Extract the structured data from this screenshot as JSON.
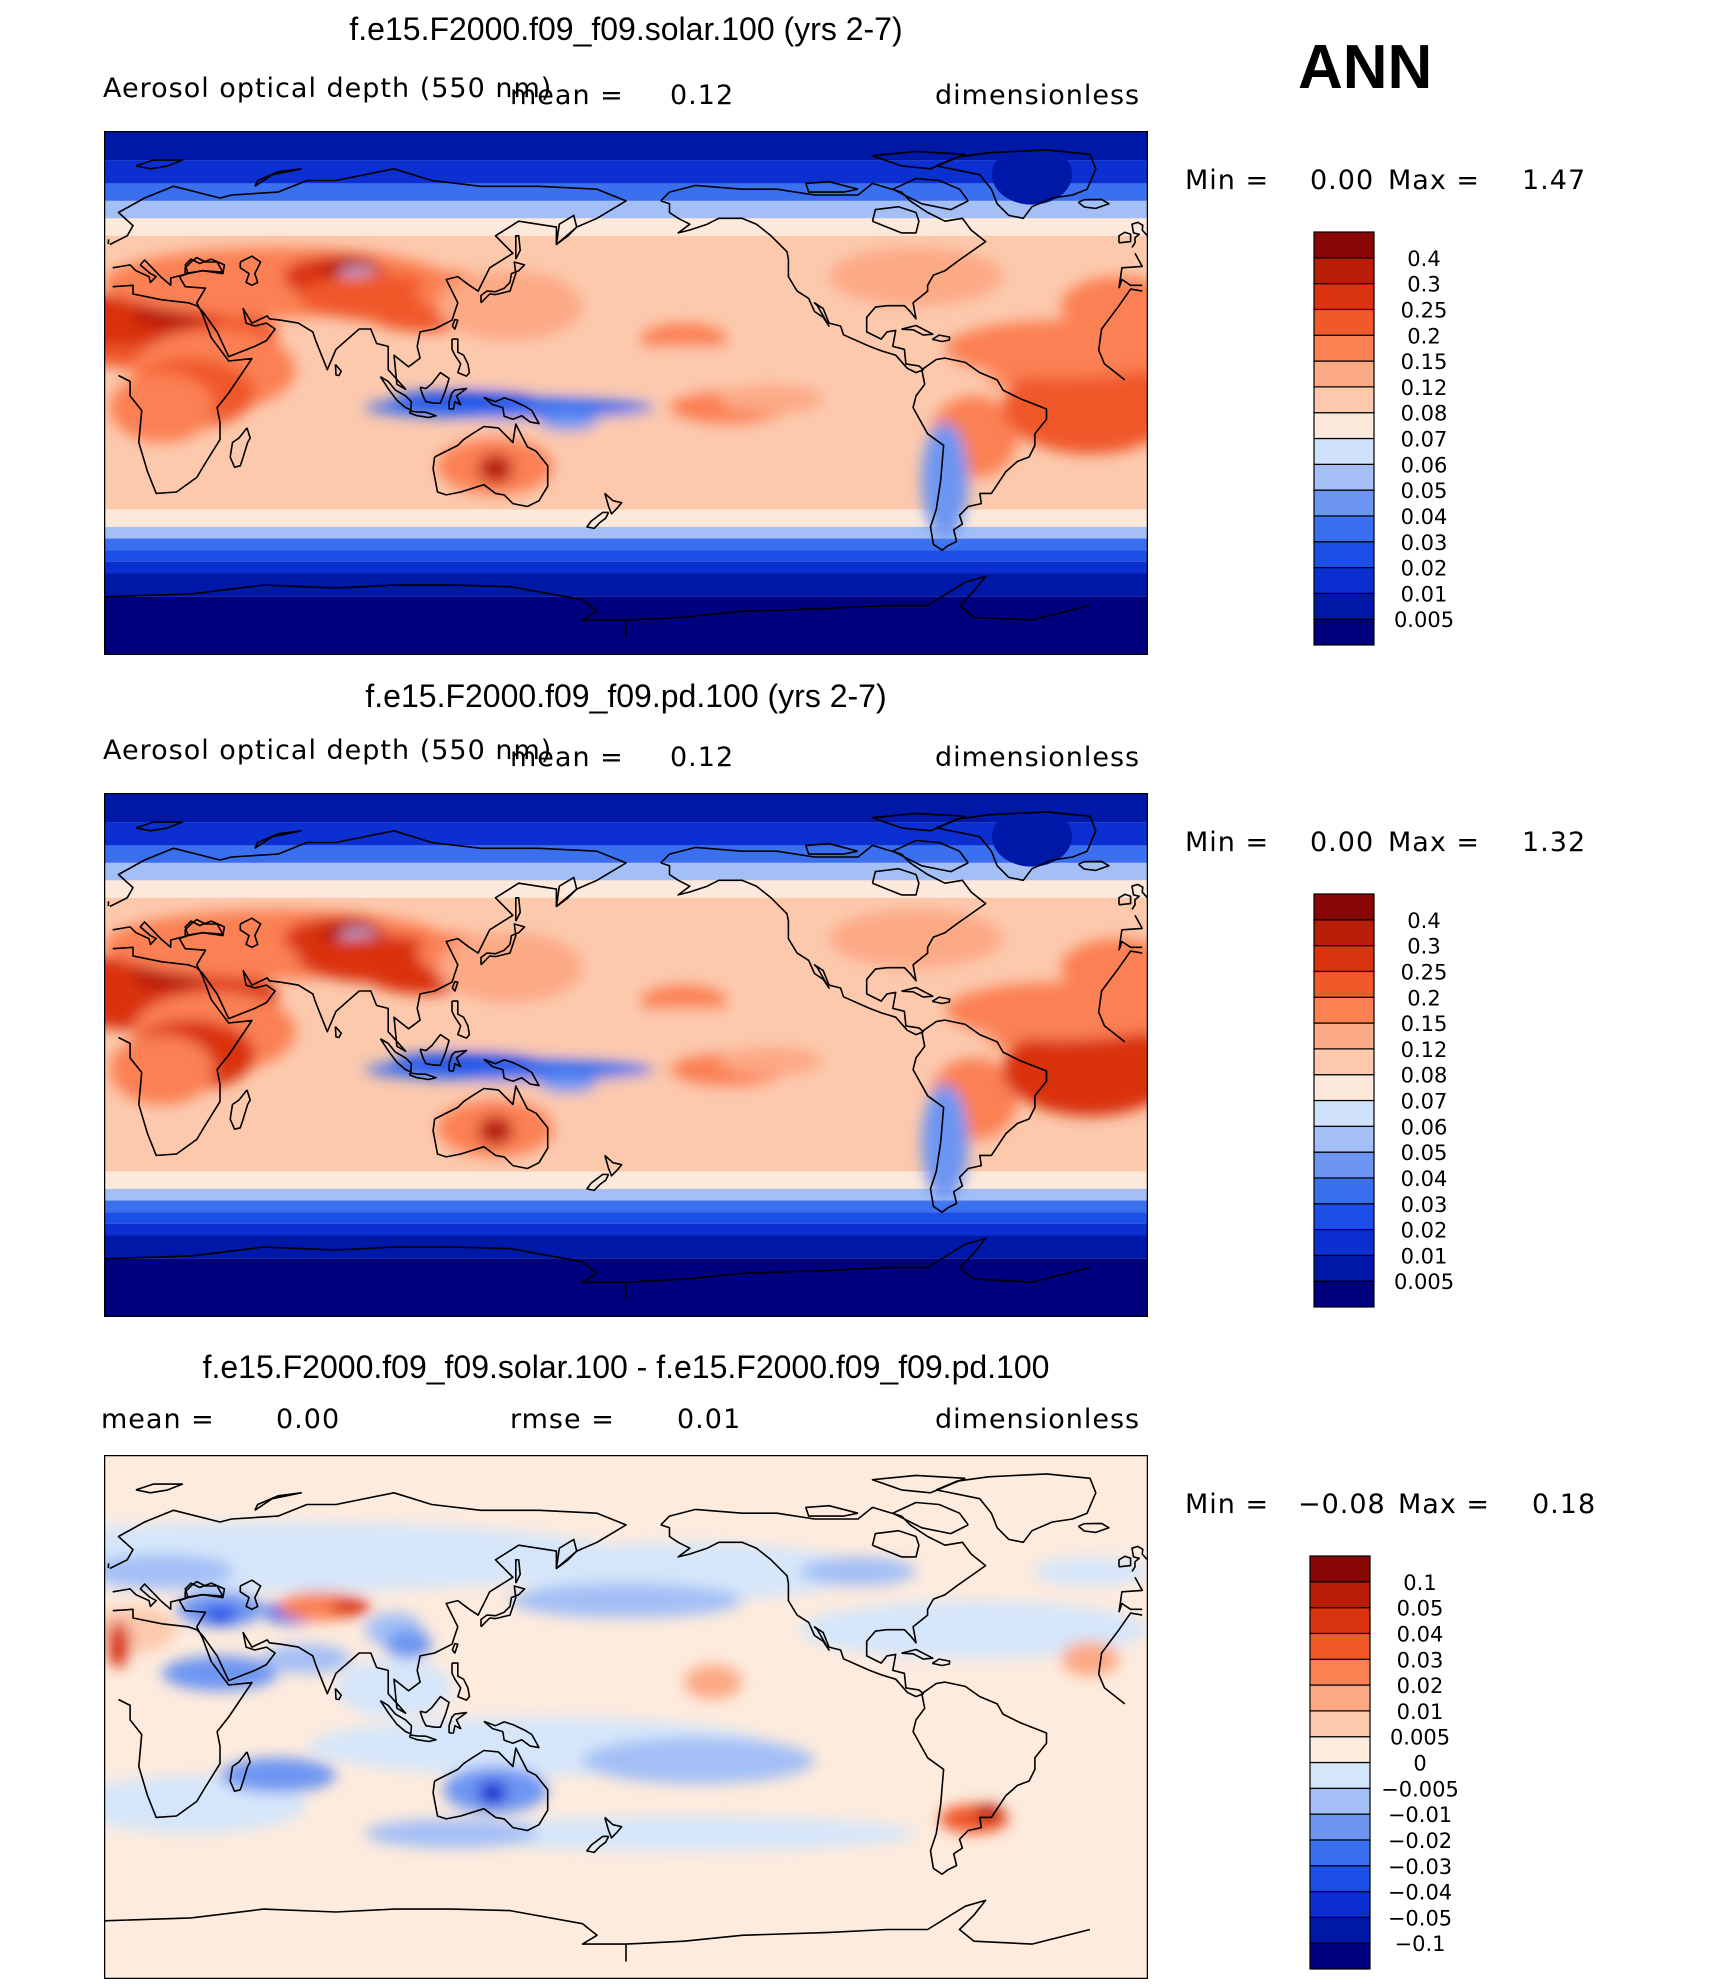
{
  "season_label": "ANN",
  "panels": [
    {
      "title": "f.e15.F2000.f09_f09.solar.100 (yrs 2-7)",
      "left_label": "Aerosol optical depth (550 nm)",
      "center_label": "mean =",
      "center_value": "0.12",
      "right_label": "dimensionless",
      "min_label": "Min =",
      "min_value": "0.00",
      "max_label": "Max =",
      "max_value": "1.47"
    },
    {
      "title": "f.e15.F2000.f09_f09.pd.100 (yrs 2-7)",
      "left_label": "Aerosol optical depth (550 nm)",
      "center_label": "mean =",
      "center_value": "0.12",
      "right_label": "dimensionless",
      "min_label": "Min =",
      "min_value": "0.00",
      "max_label": "Max =",
      "max_value": "1.32"
    },
    {
      "title": "f.e15.F2000.f09_f09.solar.100 - f.e15.F2000.f09_f09.pd.100",
      "left_label": "mean =",
      "left_value": "0.00",
      "center_label": "rmse =",
      "center_value": "0.01",
      "right_label": "dimensionless",
      "min_label": "Min =",
      "min_value": "−0.08",
      "max_label": "Max =",
      "max_value": "0.18"
    }
  ],
  "chart_data": [
    {
      "type": "heatmap",
      "title": "f.e15.F2000.f09_f09.solar.100 (yrs 2-7)",
      "variable": "Aerosol optical depth (550 nm)",
      "units": "dimensionless",
      "mean": 0.12,
      "min": 0.0,
      "max": 1.47,
      "colorbar_levels": [
        "0.005",
        "0.01",
        "0.02",
        "0.03",
        "0.04",
        "0.05",
        "0.06",
        "0.07",
        "0.08",
        "0.12",
        "0.15",
        "0.2",
        "0.25",
        "0.3",
        "0.4"
      ],
      "colorbar_colors": [
        "#00007f",
        "#0018a8",
        "#0b2fd0",
        "#1b4fe8",
        "#3a6ff0",
        "#6d95f2",
        "#a3bff6",
        "#cfe1fb",
        "#fde9dc",
        "#fcc9ad",
        "#fca985",
        "#fb8052",
        "#f0592a",
        "#d93310",
        "#b81d08",
        "#880606"
      ]
    },
    {
      "type": "heatmap",
      "title": "f.e15.F2000.f09_f09.pd.100 (yrs 2-7)",
      "variable": "Aerosol optical depth (550 nm)",
      "units": "dimensionless",
      "mean": 0.12,
      "min": 0.0,
      "max": 1.32,
      "colorbar_levels": [
        "0.005",
        "0.01",
        "0.02",
        "0.03",
        "0.04",
        "0.05",
        "0.06",
        "0.07",
        "0.08",
        "0.12",
        "0.15",
        "0.2",
        "0.25",
        "0.3",
        "0.4"
      ],
      "colorbar_colors": [
        "#00007f",
        "#0018a8",
        "#0b2fd0",
        "#1b4fe8",
        "#3a6ff0",
        "#6d95f2",
        "#a3bff6",
        "#cfe1fb",
        "#fde9dc",
        "#fcc9ad",
        "#fca985",
        "#fb8052",
        "#f0592a",
        "#d93310",
        "#b81d08",
        "#880606"
      ]
    },
    {
      "type": "heatmap",
      "title": "f.e15.F2000.f09_f09.solar.100 - f.e15.F2000.f09_f09.pd.100",
      "units": "dimensionless",
      "mean": 0.0,
      "rmse": 0.01,
      "min": -0.08,
      "max": 0.18,
      "colorbar_levels": [
        "−0.1",
        "−0.05",
        "−0.04",
        "−0.03",
        "−0.02",
        "−0.01",
        "−0.005",
        "0",
        "0.005",
        "0.01",
        "0.02",
        "0.03",
        "0.04",
        "0.05",
        "0.1"
      ],
      "colorbar_colors": [
        "#00007f",
        "#0018a8",
        "#0b2fd0",
        "#1b4fe8",
        "#3a6ff0",
        "#6d95f2",
        "#a3bff6",
        "#d6e6fa",
        "#fdebdd",
        "#fcc9ad",
        "#fca985",
        "#fb8052",
        "#f0592a",
        "#d93310",
        "#b81d08",
        "#880606"
      ]
    }
  ]
}
